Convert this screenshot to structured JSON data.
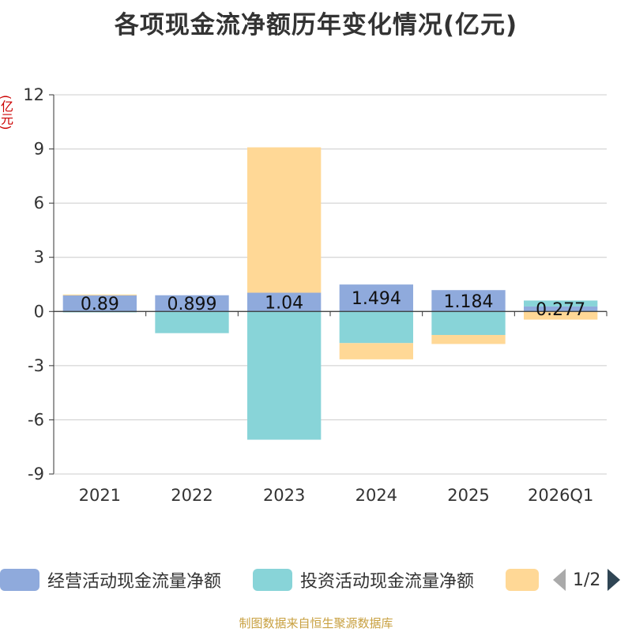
{
  "chart_data": {
    "type": "bar",
    "stacked": true,
    "title": "各项现金流净额历年变化情况(亿元)",
    "ylabel": "(亿元)",
    "xlabel": "",
    "ylim": [
      -9,
      12
    ],
    "yticks": [
      12,
      9,
      6,
      3,
      0,
      -3,
      -6,
      -9
    ],
    "categories": [
      "2021",
      "2022",
      "2023",
      "2024",
      "2025",
      "2026Q1"
    ],
    "series": [
      {
        "name": "经营活动现金流量净额",
        "color": "#8faadc",
        "values": [
          0.89,
          0.899,
          1.04,
          1.494,
          1.184,
          0.277
        ],
        "labels": [
          "0.89",
          "0.899",
          "1.04",
          "1.494",
          "1.184",
          "0.277"
        ]
      },
      {
        "name": "投资活动现金流量净额",
        "color": "#88d4d8",
        "values": [
          -0.05,
          -1.2,
          -7.1,
          -1.75,
          -1.3,
          0.33
        ]
      },
      {
        "name": "",
        "color": "#ffd896",
        "values": [
          0.05,
          0,
          8.05,
          -0.9,
          -0.5,
          -0.45
        ]
      }
    ],
    "grid": true,
    "legend_position": "bottom"
  },
  "legend": {
    "items": [
      {
        "label": "经营活动现金流量净额",
        "color": "#8faadc"
      },
      {
        "label": "投资活动现金流量净额",
        "color": "#88d4d8"
      },
      {
        "label": "",
        "color": "#ffd896"
      }
    ],
    "page": "1/2"
  },
  "footer": "制图数据来自恒生聚源数据库"
}
